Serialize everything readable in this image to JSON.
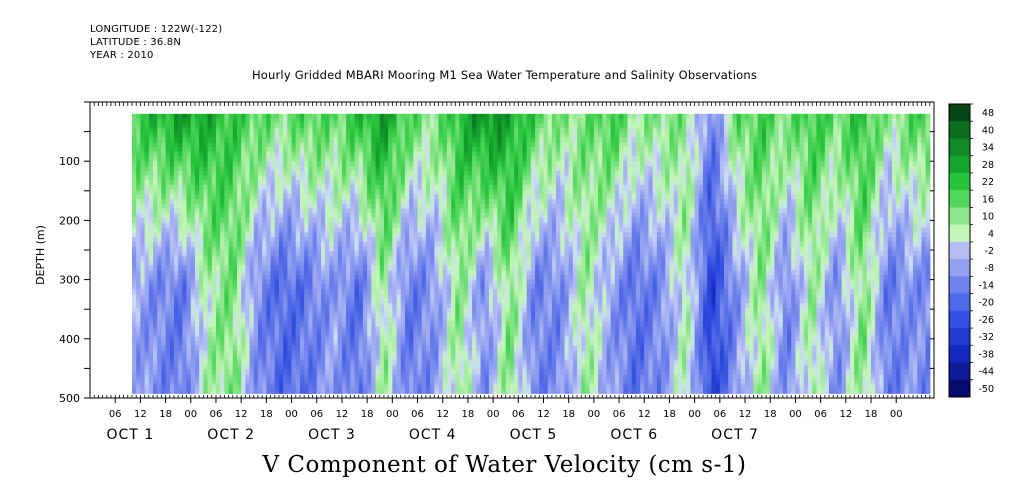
{
  "header": {
    "longitude": "LONGITUDE : 122W(-122)",
    "latitude": "LATITUDE : 36.8N",
    "year": "YEAR : 2010"
  },
  "plot_title": "Hourly Gridded MBARI Mooring M1 Sea Water Temperature and Salinity Observations",
  "figure_title": "V Component of Water Velocity (cm s-1)",
  "colors": {
    "neg_dark": "#0a1a8c",
    "neg_mid": "#3c5ce0",
    "neg_light": "#9ea8f0",
    "pos_light": "#a8eea0",
    "pos_mid": "#3ad24a",
    "pos_dark": "#0a5a18"
  },
  "chart_data": {
    "type": "heatmap",
    "title": "Hourly Gridded MBARI Mooring M1 Sea Water Temperature and Salinity Observations",
    "xlabel": "",
    "ylabel": "DEPTH (m)",
    "ylim": [
      500,
      0
    ],
    "y_ticks": [
      100,
      200,
      300,
      400,
      500
    ],
    "x_hour_ticks": [
      "06",
      "12",
      "18",
      "00",
      "06",
      "12",
      "18",
      "00",
      "06",
      "12",
      "18",
      "00",
      "06",
      "12",
      "18",
      "00",
      "06",
      "12",
      "18",
      "00",
      "06",
      "12",
      "18",
      "00",
      "06",
      "12",
      "18",
      "00",
      "06",
      "12",
      "18",
      "00"
    ],
    "x_day_labels": [
      "OCT 1",
      "OCT 2",
      "OCT 3",
      "OCT 4",
      "OCT 5",
      "OCT 6",
      "OCT 7"
    ],
    "colorbar_levels": [
      48,
      40,
      34,
      28,
      22,
      16,
      10,
      4,
      -2,
      -8,
      -14,
      -20,
      -26,
      -32,
      -38,
      -44,
      -50
    ],
    "depth_range": [
      20,
      485
    ],
    "columns_v_profile": [
      {
        "hour": 10,
        "top": 20,
        "bottom": -6
      },
      {
        "hour": 16,
        "top": 24,
        "bottom": -12
      },
      {
        "hour": 22,
        "top": 30,
        "bottom": -16
      },
      {
        "hour": 28,
        "top": 26,
        "bottom": 6
      },
      {
        "hour": 34,
        "top": 20,
        "bottom": 12
      },
      {
        "hour": 40,
        "top": 16,
        "bottom": -12
      },
      {
        "hour": 46,
        "top": 12,
        "bottom": -20
      },
      {
        "hour": 52,
        "top": 18,
        "bottom": -16
      },
      {
        "hour": 58,
        "top": 14,
        "bottom": -8
      },
      {
        "hour": 64,
        "top": 22,
        "bottom": -18
      },
      {
        "hour": 70,
        "top": 30,
        "bottom": 8
      },
      {
        "hour": 76,
        "top": 16,
        "bottom": -16
      },
      {
        "hour": 82,
        "top": 10,
        "bottom": -10
      },
      {
        "hour": 88,
        "top": 24,
        "bottom": 10
      },
      {
        "hour": 94,
        "top": 34,
        "bottom": -12
      },
      {
        "hour": 100,
        "top": 28,
        "bottom": 12
      },
      {
        "hour": 106,
        "top": 18,
        "bottom": -14
      },
      {
        "hour": 112,
        "top": 10,
        "bottom": -12
      },
      {
        "hour": 118,
        "top": 12,
        "bottom": 8
      },
      {
        "hour": 124,
        "top": 20,
        "bottom": -8
      },
      {
        "hour": 130,
        "top": 8,
        "bottom": -18
      },
      {
        "hour": 136,
        "top": 12,
        "bottom": -12
      },
      {
        "hour": 142,
        "top": 10,
        "bottom": 6
      },
      {
        "hour": 148,
        "top": -14,
        "bottom": -30
      },
      {
        "hour": 154,
        "top": 14,
        "bottom": -10
      },
      {
        "hour": 160,
        "top": 18,
        "bottom": 10
      },
      {
        "hour": 166,
        "top": 12,
        "bottom": -14
      },
      {
        "hour": 172,
        "top": 20,
        "bottom": 8
      },
      {
        "hour": 178,
        "top": 14,
        "bottom": -12
      },
      {
        "hour": 184,
        "top": 22,
        "bottom": 12
      },
      {
        "hour": 190,
        "top": 8,
        "bottom": -16
      },
      {
        "hour": 196,
        "top": 16,
        "bottom": -10
      },
      {
        "hour": 200,
        "top": 20,
        "bottom": -14
      }
    ]
  }
}
